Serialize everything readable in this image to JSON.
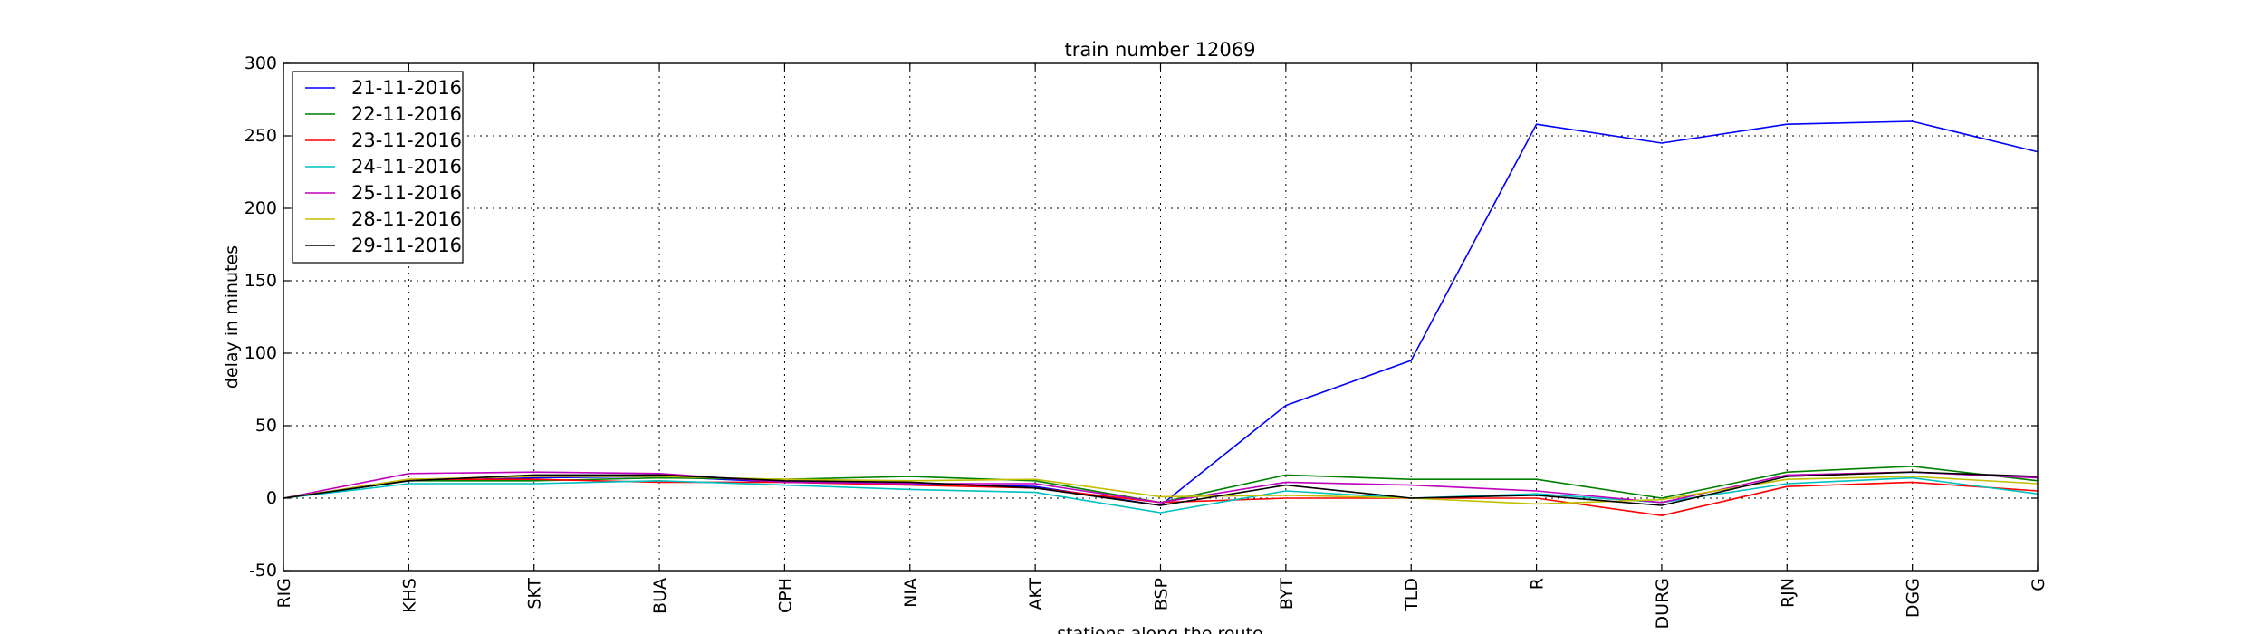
{
  "chart_data": {
    "type": "line",
    "title": "train number 12069",
    "xlabel": "stations along the route",
    "ylabel": "delay in minutes",
    "ylim": [
      -50,
      300
    ],
    "yticks": [
      -50,
      0,
      50,
      100,
      150,
      200,
      250,
      300
    ],
    "grid": true,
    "legend_position": "top-left",
    "categories": [
      "RIG",
      "KHS",
      "SKT",
      "BUA",
      "CPH",
      "NIA",
      "AKT",
      "BSP",
      "BYT",
      "TLD",
      "R",
      "DURG",
      "RJN",
      "DGG",
      "G"
    ],
    "series": [
      {
        "name": "21-11-2016",
        "color": "#0000ff",
        "values": [
          0,
          12,
          14,
          15,
          11,
          10,
          8,
          -5,
          64,
          95,
          258,
          245,
          258,
          260,
          239
        ]
      },
      {
        "name": "22-11-2016",
        "color": "#008000",
        "values": [
          0,
          12,
          12,
          14,
          13,
          15,
          12,
          -3,
          16,
          13,
          13,
          0,
          18,
          22,
          12
        ]
      },
      {
        "name": "23-11-2016",
        "color": "#ff0000",
        "values": [
          0,
          13,
          13,
          11,
          11,
          9,
          7,
          -3,
          0,
          0,
          0,
          -12,
          8,
          11,
          5
        ]
      },
      {
        "name": "24-11-2016",
        "color": "#00bfbf",
        "values": [
          0,
          10,
          10,
          12,
          9,
          6,
          4,
          -10,
          5,
          0,
          3,
          -3,
          10,
          14,
          3
        ]
      },
      {
        "name": "25-11-2016",
        "color": "#bf00bf",
        "values": [
          0,
          17,
          18,
          17,
          11,
          10,
          10,
          -3,
          11,
          9,
          5,
          -3,
          16,
          18,
          14
        ]
      },
      {
        "name": "28-11-2016",
        "color": "#bfbf00",
        "values": [
          0,
          13,
          15,
          15,
          13,
          12,
          13,
          1,
          2,
          0,
          -4,
          -1,
          13,
          15,
          10
        ]
      },
      {
        "name": "29-11-2016",
        "color": "#000000",
        "values": [
          0,
          12,
          16,
          16,
          12,
          11,
          7,
          -5,
          9,
          0,
          2,
          -5,
          15,
          18,
          15
        ]
      }
    ]
  }
}
